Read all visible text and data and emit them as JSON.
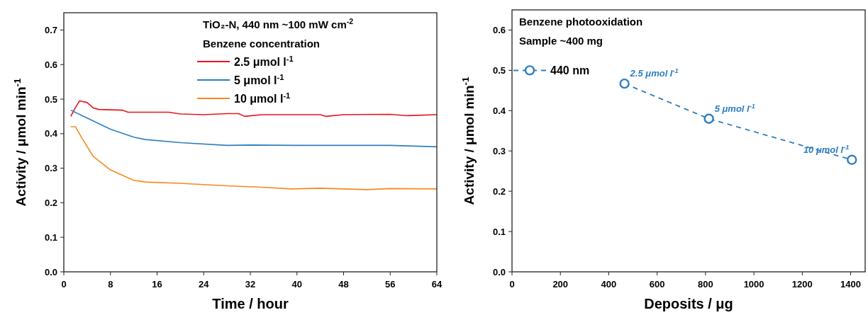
{
  "chart_data": [
    {
      "type": "line",
      "xlabel": "Time / hour",
      "ylabel": "Activity / μmol min$^{-1}$",
      "legend_title": "Benzene concentration",
      "annotations": [
        "TiO₂-N, 440 nm ~100 mW cm$^{-2}$"
      ],
      "xlim": [
        0,
        64
      ],
      "xticks": [
        0,
        8,
        16,
        24,
        32,
        40,
        48,
        56,
        64
      ],
      "ylim": [
        0,
        0.75
      ],
      "yticks": [
        {
          "value": 0,
          "label": "0.0"
        },
        0.1,
        0.2,
        0.3,
        0.4,
        0.5,
        0.6,
        0.7
      ],
      "legend": "top right",
      "line_style": "solid",
      "series": [
        {
          "name": "2.5 μmol l$^{-1}$",
          "color": "#e8141c",
          "x": [
            1.2,
            1.8,
            2.7,
            4,
            5,
            6,
            10,
            11,
            18,
            20,
            24,
            28,
            30,
            31,
            34,
            44,
            45,
            48,
            56,
            59,
            64
          ],
          "values": [
            0.45,
            0.47,
            0.495,
            0.49,
            0.475,
            0.47,
            0.468,
            0.462,
            0.462,
            0.457,
            0.455,
            0.458,
            0.458,
            0.45,
            0.455,
            0.455,
            0.45,
            0.455,
            0.456,
            0.452,
            0.455
          ]
        },
        {
          "name": "5 μmol l$^{-1}$",
          "color": "#2e7fc0",
          "x": [
            1.2,
            4,
            8,
            12,
            14,
            20,
            28,
            32,
            40,
            56,
            60,
            64
          ],
          "values": [
            0.468,
            0.445,
            0.413,
            0.39,
            0.383,
            0.374,
            0.366,
            0.367,
            0.366,
            0.366,
            0.364,
            0.362
          ]
        },
        {
          "name": "10 μmol l$^{-1}$",
          "color": "#f5891f",
          "x": [
            1.2,
            2,
            3,
            5,
            8,
            12,
            14,
            20,
            28,
            34,
            39,
            44,
            52,
            56,
            64
          ],
          "values": [
            0.42,
            0.42,
            0.39,
            0.335,
            0.295,
            0.265,
            0.26,
            0.256,
            0.249,
            0.245,
            0.24,
            0.242,
            0.238,
            0.241,
            0.24
          ]
        }
      ]
    },
    {
      "type": "line",
      "xlabel": "Deposits / μg",
      "ylabel": "Activity / μmol min$^{-1}$",
      "annotations": [
        "Benzene photooxidation",
        "Sample ~400 mg",
        {
          "text": "2.5 μmol l$^{-1}$",
          "x": 465,
          "y": 0.467
        },
        {
          "text": "5 μmol l$^{-1}$",
          "x": 814,
          "y": 0.38
        },
        {
          "text": "10 μmol l$^{-1}$",
          "x": 1405,
          "y": 0.278
        }
      ],
      "xlim": [
        0,
        1460
      ],
      "xticks": [
        0,
        200,
        400,
        600,
        800,
        1000,
        1200,
        1400
      ],
      "ylim": [
        0,
        0.65
      ],
      "yticks": [
        {
          "value": 0,
          "label": "0.0"
        },
        0.1,
        0.2,
        0.3,
        0.4,
        0.5,
        0.6
      ],
      "legend": "top left",
      "marker": "circle",
      "line_style": "dashed",
      "series": [
        {
          "name": "440 nm",
          "color": "#2e7fc0",
          "x": [
            465,
            814,
            1405
          ],
          "values": [
            0.467,
            0.38,
            0.278
          ]
        }
      ]
    }
  ]
}
